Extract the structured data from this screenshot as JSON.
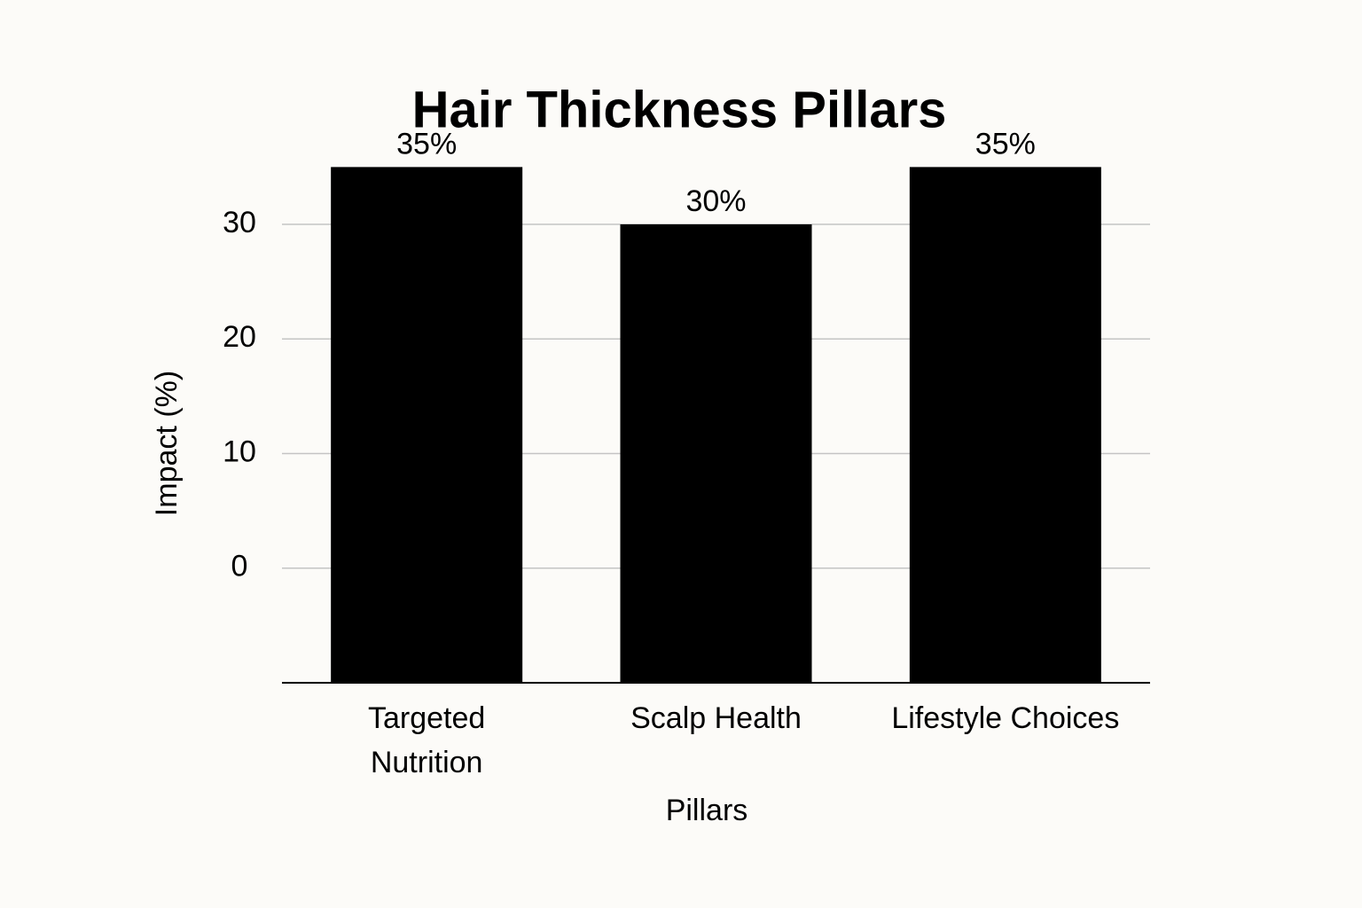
{
  "chart_data": {
    "type": "bar",
    "title": "Hair Thickness Pillars",
    "x_label": "Pillars",
    "y_label": "Impact (%)",
    "categories": [
      "Targeted Nutrition",
      "Scalp Health",
      "Lifestyle Choices"
    ],
    "values": [
      35,
      30,
      35
    ],
    "value_labels": [
      "35%",
      "30%",
      "35%"
    ],
    "color": "#000000",
    "ylim": [
      -10,
      30
    ],
    "yticks": [
      0,
      10,
      20,
      30
    ],
    "grid": true
  }
}
